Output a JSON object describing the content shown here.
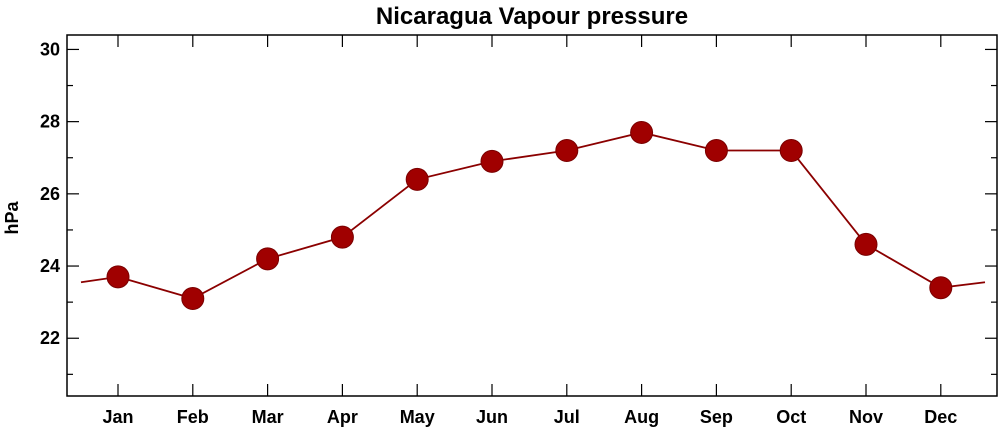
{
  "chart_data": {
    "type": "line",
    "title": "Nicaragua Vapour pressure",
    "xlabel": "",
    "ylabel": "hPa",
    "categories": [
      "Jan",
      "Feb",
      "Mar",
      "Apr",
      "May",
      "Jun",
      "Jul",
      "Aug",
      "Sep",
      "Oct",
      "Nov",
      "Dec"
    ],
    "series": [
      {
        "values": [
          23.7,
          23.1,
          24.2,
          24.8,
          26.4,
          26.9,
          27.2,
          27.7,
          27.2,
          27.2,
          24.6,
          23.4
        ]
      }
    ],
    "ylim": [
      20.4,
      30.4
    ],
    "yticks": [
      22,
      24,
      26,
      28,
      30
    ],
    "grid": false,
    "legend": "none",
    "colors": {
      "line": "#8b0000",
      "marker": "#a00000",
      "axis": "#000000"
    }
  }
}
